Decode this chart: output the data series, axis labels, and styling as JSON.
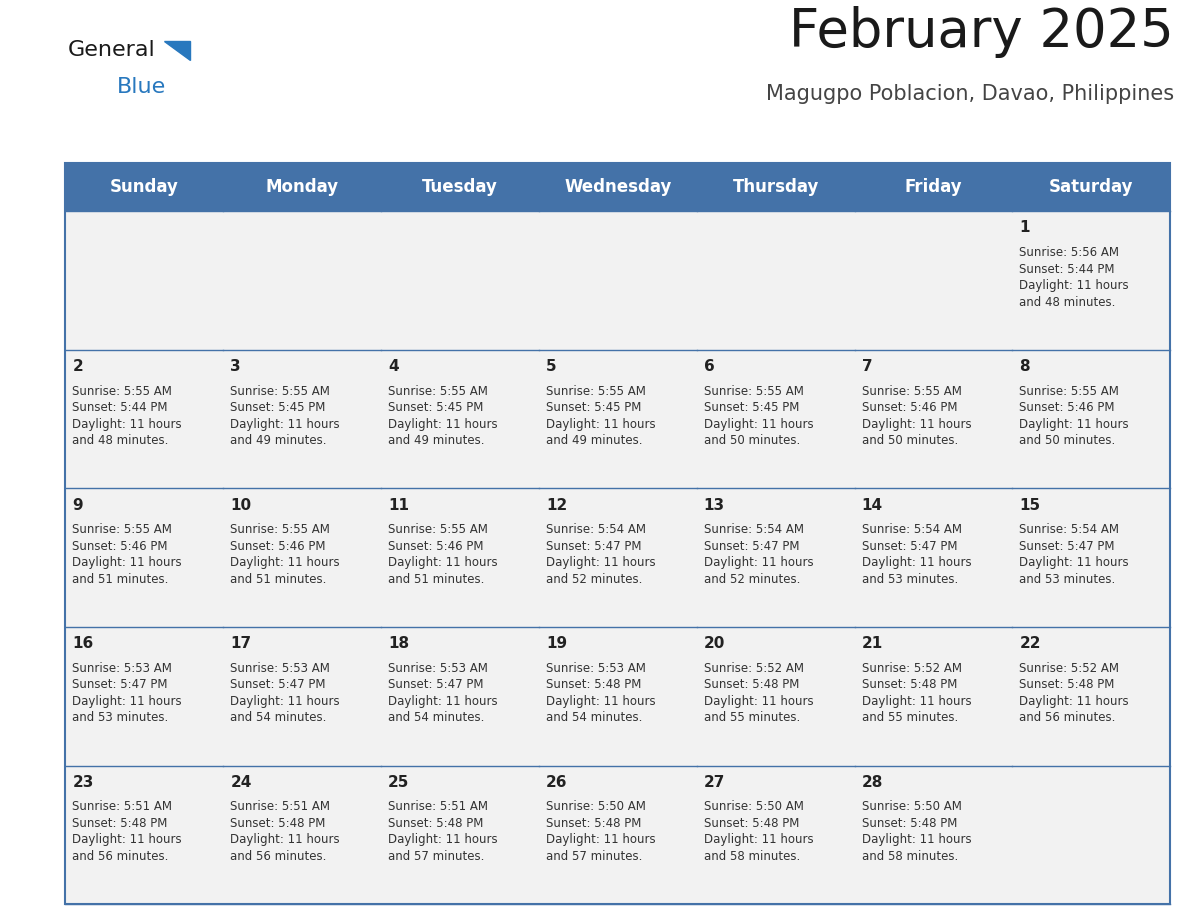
{
  "title": "February 2025",
  "subtitle": "Magugpo Poblacion, Davao, Philippines",
  "header_color": "#4472a8",
  "header_text_color": "#ffffff",
  "cell_bg_color": "#f2f2f2",
  "border_color": "#4472a8",
  "days_of_week": [
    "Sunday",
    "Monday",
    "Tuesday",
    "Wednesday",
    "Thursday",
    "Friday",
    "Saturday"
  ],
  "calendar_data": [
    [
      "",
      "",
      "",
      "",
      "",
      "",
      "1\nSunrise: 5:56 AM\nSunset: 5:44 PM\nDaylight: 11 hours\nand 48 minutes."
    ],
    [
      "2\nSunrise: 5:55 AM\nSunset: 5:44 PM\nDaylight: 11 hours\nand 48 minutes.",
      "3\nSunrise: 5:55 AM\nSunset: 5:45 PM\nDaylight: 11 hours\nand 49 minutes.",
      "4\nSunrise: 5:55 AM\nSunset: 5:45 PM\nDaylight: 11 hours\nand 49 minutes.",
      "5\nSunrise: 5:55 AM\nSunset: 5:45 PM\nDaylight: 11 hours\nand 49 minutes.",
      "6\nSunrise: 5:55 AM\nSunset: 5:45 PM\nDaylight: 11 hours\nand 50 minutes.",
      "7\nSunrise: 5:55 AM\nSunset: 5:46 PM\nDaylight: 11 hours\nand 50 minutes.",
      "8\nSunrise: 5:55 AM\nSunset: 5:46 PM\nDaylight: 11 hours\nand 50 minutes."
    ],
    [
      "9\nSunrise: 5:55 AM\nSunset: 5:46 PM\nDaylight: 11 hours\nand 51 minutes.",
      "10\nSunrise: 5:55 AM\nSunset: 5:46 PM\nDaylight: 11 hours\nand 51 minutes.",
      "11\nSunrise: 5:55 AM\nSunset: 5:46 PM\nDaylight: 11 hours\nand 51 minutes.",
      "12\nSunrise: 5:54 AM\nSunset: 5:47 PM\nDaylight: 11 hours\nand 52 minutes.",
      "13\nSunrise: 5:54 AM\nSunset: 5:47 PM\nDaylight: 11 hours\nand 52 minutes.",
      "14\nSunrise: 5:54 AM\nSunset: 5:47 PM\nDaylight: 11 hours\nand 53 minutes.",
      "15\nSunrise: 5:54 AM\nSunset: 5:47 PM\nDaylight: 11 hours\nand 53 minutes."
    ],
    [
      "16\nSunrise: 5:53 AM\nSunset: 5:47 PM\nDaylight: 11 hours\nand 53 minutes.",
      "17\nSunrise: 5:53 AM\nSunset: 5:47 PM\nDaylight: 11 hours\nand 54 minutes.",
      "18\nSunrise: 5:53 AM\nSunset: 5:47 PM\nDaylight: 11 hours\nand 54 minutes.",
      "19\nSunrise: 5:53 AM\nSunset: 5:48 PM\nDaylight: 11 hours\nand 54 minutes.",
      "20\nSunrise: 5:52 AM\nSunset: 5:48 PM\nDaylight: 11 hours\nand 55 minutes.",
      "21\nSunrise: 5:52 AM\nSunset: 5:48 PM\nDaylight: 11 hours\nand 55 minutes.",
      "22\nSunrise: 5:52 AM\nSunset: 5:48 PM\nDaylight: 11 hours\nand 56 minutes."
    ],
    [
      "23\nSunrise: 5:51 AM\nSunset: 5:48 PM\nDaylight: 11 hours\nand 56 minutes.",
      "24\nSunrise: 5:51 AM\nSunset: 5:48 PM\nDaylight: 11 hours\nand 56 minutes.",
      "25\nSunrise: 5:51 AM\nSunset: 5:48 PM\nDaylight: 11 hours\nand 57 minutes.",
      "26\nSunrise: 5:50 AM\nSunset: 5:48 PM\nDaylight: 11 hours\nand 57 minutes.",
      "27\nSunrise: 5:50 AM\nSunset: 5:48 PM\nDaylight: 11 hours\nand 58 minutes.",
      "28\nSunrise: 5:50 AM\nSunset: 5:48 PM\nDaylight: 11 hours\nand 58 minutes.",
      ""
    ]
  ],
  "title_fontsize": 38,
  "subtitle_fontsize": 15,
  "day_header_fontsize": 12,
  "cell_number_fontsize": 11,
  "cell_text_fontsize": 8.5,
  "logo_general_fontsize": 16,
  "logo_blue_fontsize": 16
}
